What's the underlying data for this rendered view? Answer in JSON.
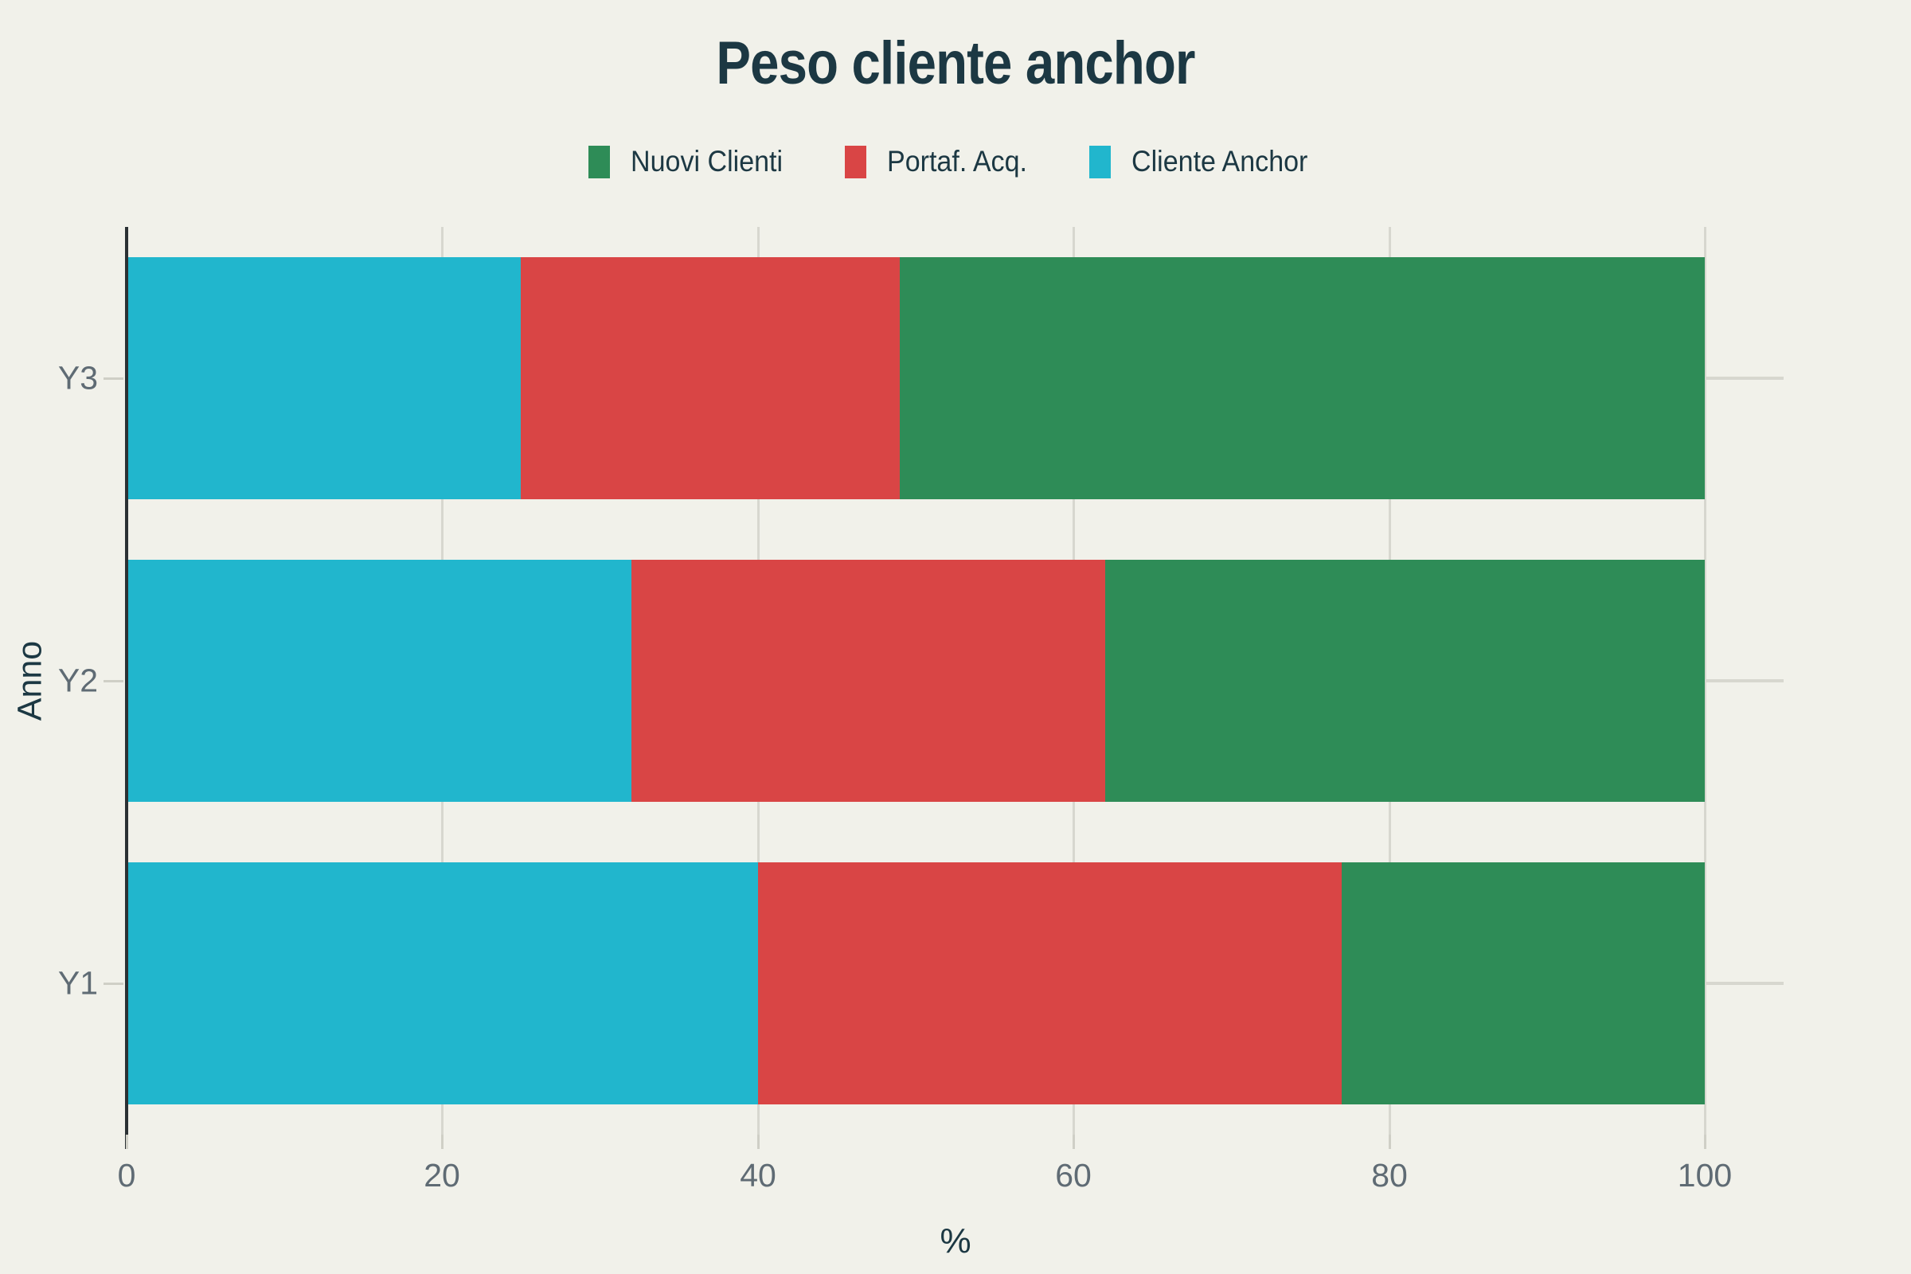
{
  "chart_data": {
    "type": "bar",
    "orientation": "horizontal",
    "barmode": "stack",
    "title": "Peso cliente anchor",
    "xlabel": "%",
    "ylabel": "Anno",
    "categories": [
      "Y1",
      "Y2",
      "Y3"
    ],
    "series": [
      {
        "name": "Cliente Anchor",
        "color": "#21b6cd",
        "values": [
          40,
          32,
          25
        ]
      },
      {
        "name": "Portaf. Acq.",
        "color": "#d94545",
        "values": [
          37,
          30,
          24
        ]
      },
      {
        "name": "Nuovi Clienti",
        "color": "#2e8c57",
        "values": [
          23,
          38,
          51
        ]
      }
    ],
    "legend": {
      "position": "top-center",
      "order": [
        "Nuovi Clienti",
        "Portaf. Acq.",
        "Cliente Anchor"
      ]
    },
    "xlim": [
      0,
      105
    ],
    "xticks": [
      0,
      20,
      40,
      60,
      80,
      100
    ],
    "grid": true
  },
  "theme": {
    "background": "#f1f1ea",
    "title_color": "#1c3843",
    "tick_label_color": "#5f6b74",
    "gridline_color": "#d7d7cf",
    "axis_line_color": "#2b3134"
  }
}
